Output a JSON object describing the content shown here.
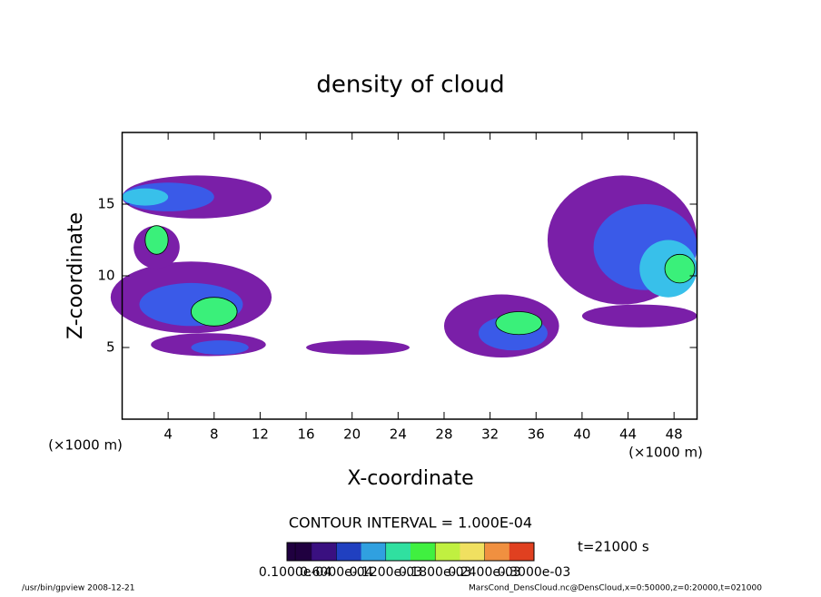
{
  "chart_data": {
    "type": "contour",
    "title": "density of cloud",
    "xlabel": "X-coordinate",
    "ylabel": "Z-coordinate",
    "xunit": "(×1000 m)",
    "xunit2": "(×1000 m)",
    "xlim": [
      0,
      50
    ],
    "ylim": [
      0,
      20
    ],
    "xticks": [
      4,
      8,
      12,
      16,
      20,
      24,
      28,
      32,
      36,
      40,
      44,
      48
    ],
    "yticks": [
      5,
      10,
      15
    ],
    "contour_interval": "CONTOUR INTERVAL = 1.000E-04",
    "time": "t=21000 s",
    "footer_left": "/usr/bin/gpview  2008-12-21",
    "footer_right": "MarsCond_DensCloud.nc@DensCloud,x=0:50000,z=0:20000,t=021000",
    "levels": [
      3e-05,
      6e-05,
      9e-05,
      0.00012
    ],
    "level_colors": [
      "#7a1fa8",
      "#3a5ae8",
      "#38c0ea",
      "#3af07a"
    ],
    "regions": [
      {
        "x": 6.5,
        "z": 15.5,
        "rx": 6.5,
        "rz": 1.5,
        "value": 3e-05
      },
      {
        "x": 4,
        "z": 15.5,
        "rx": 4,
        "rz": 1,
        "value": 6e-05
      },
      {
        "x": 2,
        "z": 15.5,
        "rx": 2,
        "rz": 0.6,
        "value": 9e-05
      },
      {
        "x": 6,
        "z": 8.5,
        "rx": 7,
        "rz": 2.5,
        "value": 3e-05
      },
      {
        "x": 6,
        "z": 8,
        "rx": 4.5,
        "rz": 1.5,
        "value": 6e-05
      },
      {
        "x": 8,
        "z": 7.5,
        "rx": 2,
        "rz": 1,
        "value": 0.00012
      },
      {
        "x": 3,
        "z": 12,
        "rx": 2,
        "rz": 1.5,
        "value": 3e-05
      },
      {
        "x": 3,
        "z": 12.5,
        "rx": 1,
        "rz": 1,
        "value": 0.00012
      },
      {
        "x": 7.5,
        "z": 5.2,
        "rx": 5,
        "rz": 0.8,
        "value": 3e-05
      },
      {
        "x": 8.5,
        "z": 5,
        "rx": 2.5,
        "rz": 0.5,
        "value": 6e-05
      },
      {
        "x": 20.5,
        "z": 5,
        "rx": 4.5,
        "rz": 0.5,
        "value": 3e-05
      },
      {
        "x": 33,
        "z": 6.5,
        "rx": 5,
        "rz": 2.2,
        "value": 3e-05
      },
      {
        "x": 34,
        "z": 6,
        "rx": 3,
        "rz": 1.2,
        "value": 6e-05
      },
      {
        "x": 34.5,
        "z": 6.7,
        "rx": 2,
        "rz": 0.8,
        "value": 0.00012
      },
      {
        "x": 43.5,
        "z": 12.5,
        "rx": 6.5,
        "rz": 4.5,
        "value": 3e-05
      },
      {
        "x": 45,
        "z": 7.2,
        "rx": 5,
        "rz": 0.8,
        "value": 3e-05
      },
      {
        "x": 45.5,
        "z": 12,
        "rx": 4.5,
        "rz": 3,
        "value": 6e-05
      },
      {
        "x": 47.5,
        "z": 10.5,
        "rx": 2.5,
        "rz": 2,
        "value": 9e-05
      },
      {
        "x": 48.5,
        "z": 10.5,
        "rx": 1.3,
        "rz": 1,
        "value": 0.00012
      }
    ],
    "colorbar": {
      "colors": [
        "#200040",
        "#3a1080",
        "#2040c0",
        "#30a0e0",
        "#30e0a0",
        "#40f040",
        "#c0f040",
        "#f0e060",
        "#f09040",
        "#e04020"
      ],
      "ticks": [
        {
          "value": 1e-05,
          "label": "0.1000e-04"
        },
        {
          "value": 6e-05,
          "label": "0.6000e-04"
        },
        {
          "value": 0.00012,
          "label": "0.1200e-03"
        },
        {
          "value": 0.00018,
          "label": "0.1800e-03"
        },
        {
          "value": 0.00024,
          "label": "0.2400e-03"
        },
        {
          "value": 0.0003,
          "label": "0.3000e-03"
        }
      ],
      "lim": [
        0,
        0.0003
      ]
    }
  }
}
